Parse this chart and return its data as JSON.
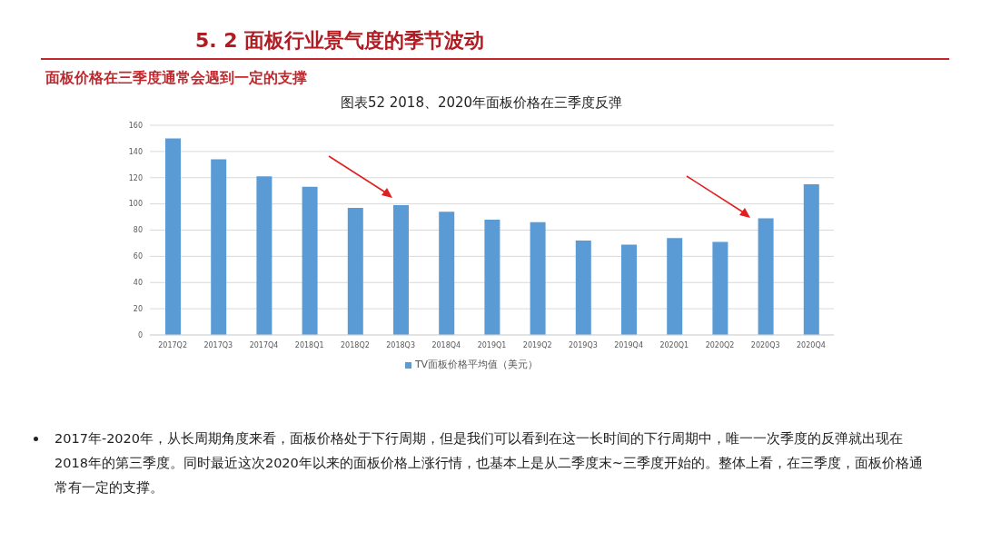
{
  "chart_data": {
    "type": "bar",
    "title": "图表52 2018、2020年面板价格在三季度反弹",
    "subtitle": "面板价格在三季度通常会遇到一定的支撑",
    "annotations": [
      "5. 2 面板行业景气度的季节波动",
      "2017年-2020年，从长周期角度来看，面板价格处于下行周期，但是我们可以看到在这一长时间的下行周期中，唯一一次季度的反弹就出现在2018年的第三季度。同时最近这次2020年以来的面板价格上涨行情，也基本上是从二季度末~三季度开始的。整体上看，在三季度，面板价格通常有一定的支撑。"
    ],
    "categories": [
      "2017Q2",
      "2017Q3",
      "2017Q4",
      "2018Q1",
      "2018Q2",
      "2018Q3",
      "2018Q4",
      "2019Q1",
      "2019Q2",
      "2019Q3",
      "2019Q4",
      "2020Q1",
      "2020Q2",
      "2020Q3",
      "2020Q4"
    ],
    "series": [
      {
        "name": "TV面板价格平均值（美元）",
        "color": "#5b9bd5",
        "values": [
          150,
          134,
          121,
          113,
          97,
          99,
          94,
          88,
          86,
          72,
          69,
          74,
          71,
          89,
          115
        ]
      }
    ],
    "ylim": [
      0,
      160
    ],
    "yticks": [
      0,
      20,
      40,
      60,
      80,
      100,
      120,
      140,
      160
    ],
    "grid": "y",
    "legend": "bottom"
  }
}
